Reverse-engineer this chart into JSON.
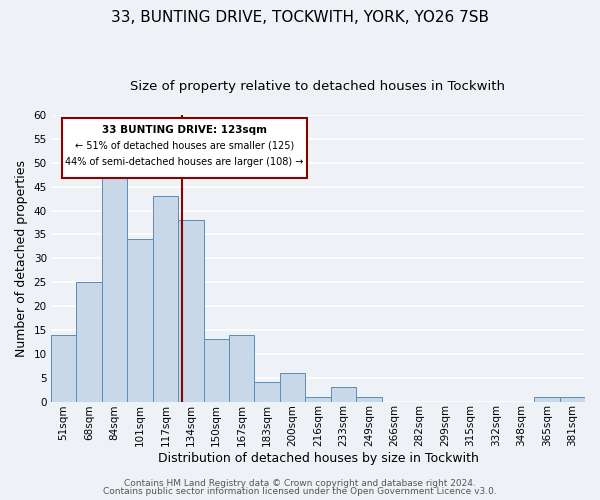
{
  "title": "33, BUNTING DRIVE, TOCKWITH, YORK, YO26 7SB",
  "subtitle": "Size of property relative to detached houses in Tockwith",
  "xlabel": "Distribution of detached houses by size in Tockwith",
  "ylabel": "Number of detached properties",
  "bin_labels": [
    "51sqm",
    "68sqm",
    "84sqm",
    "101sqm",
    "117sqm",
    "134sqm",
    "150sqm",
    "167sqm",
    "183sqm",
    "200sqm",
    "216sqm",
    "233sqm",
    "249sqm",
    "266sqm",
    "282sqm",
    "299sqm",
    "315sqm",
    "332sqm",
    "348sqm",
    "365sqm",
    "381sqm"
  ],
  "bin_values": [
    14,
    25,
    48,
    34,
    43,
    38,
    13,
    14,
    4,
    6,
    1,
    3,
    1,
    0,
    0,
    0,
    0,
    0,
    0,
    1,
    1
  ],
  "bar_color": "#c8d8e8",
  "bar_edge_color": "#5b8db8",
  "bar_width": 1.0,
  "ylim": [
    0,
    60
  ],
  "yticks": [
    0,
    5,
    10,
    15,
    20,
    25,
    30,
    35,
    40,
    45,
    50,
    55,
    60
  ],
  "vline_x": 4.67,
  "vline_color": "#8b0000",
  "annotation_box_line1": "33 BUNTING DRIVE: 123sqm",
  "annotation_box_line2": "← 51% of detached houses are smaller (125)",
  "annotation_box_line3": "44% of semi-detached houses are larger (108) →",
  "annotation_box_color": "#8b0000",
  "annotation_box_facecolor": "white",
  "footer_line1": "Contains HM Land Registry data © Crown copyright and database right 2024.",
  "footer_line2": "Contains public sector information licensed under the Open Government Licence v3.0.",
  "background_color": "#eef2f7",
  "grid_color": "white",
  "title_fontsize": 11,
  "subtitle_fontsize": 9.5,
  "axis_label_fontsize": 9,
  "tick_fontsize": 7.5,
  "footer_fontsize": 6.5
}
